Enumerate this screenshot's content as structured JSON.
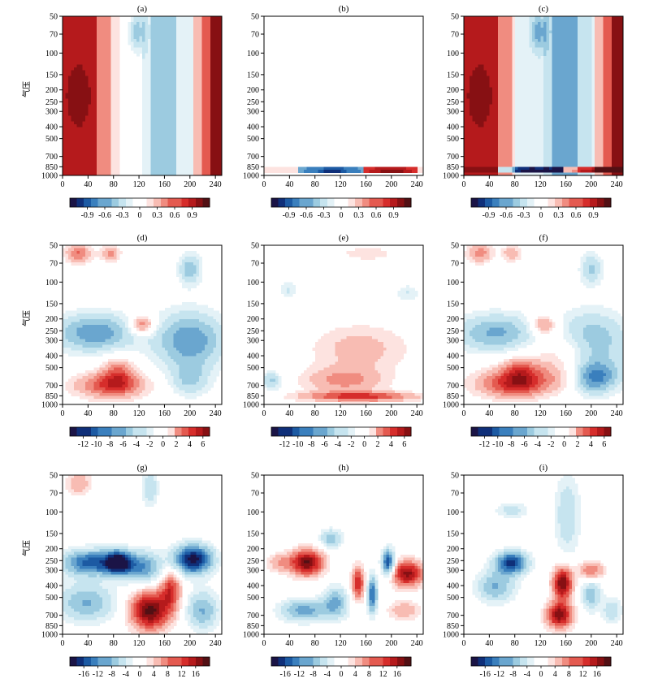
{
  "figure": {
    "y_axis_label": "气压",
    "colors": {
      "neg": [
        "#1b1446",
        "#0f2f79",
        "#1c5aa3",
        "#3a7fbd",
        "#6aa6cf",
        "#9ccbe0",
        "#c6e4ef",
        "#e4f2f7",
        "#ffffff"
      ],
      "pos": [
        "#ffffff",
        "#fde3e0",
        "#f8bcb3",
        "#f08c80",
        "#e45a50",
        "#d62d2b",
        "#b51a1c",
        "#871013",
        "#521014"
      ]
    }
  },
  "chart_data": [
    {
      "id": "a",
      "title": "(a)",
      "type": "heatmap",
      "row": 0,
      "col": 0,
      "x_ticks": [
        0,
        40,
        80,
        120,
        160,
        200,
        240
      ],
      "xlim": [
        0,
        250
      ],
      "y_ticks": [
        50,
        70,
        100,
        150,
        200,
        250,
        300,
        400,
        500,
        700,
        850,
        1000
      ],
      "ylim": [
        1000,
        50
      ],
      "y_scale": "log",
      "show_yticks": true,
      "colorbar_ticks": [
        "-0.9",
        "-0.6",
        "-0.3",
        "0",
        "0.3",
        "0.6",
        "0.9"
      ],
      "colorbar_range": [
        -1.2,
        1.2
      ],
      "pattern": "a"
    },
    {
      "id": "b",
      "title": "(b)",
      "type": "heatmap",
      "row": 0,
      "col": 1,
      "x_ticks": [
        0,
        40,
        80,
        120,
        160,
        200,
        240
      ],
      "xlim": [
        0,
        250
      ],
      "y_ticks": [
        50,
        70,
        100,
        150,
        200,
        250,
        300,
        400,
        500,
        700,
        850,
        1000
      ],
      "ylim": [
        1000,
        50
      ],
      "y_scale": "log",
      "show_yticks": true,
      "colorbar_ticks": [
        "-0.9",
        "-0.6",
        "-0.3",
        "0",
        "0.3",
        "0.6",
        "0.9"
      ],
      "colorbar_range": [
        -1.2,
        1.2
      ],
      "pattern": "b"
    },
    {
      "id": "c",
      "title": "(c)",
      "type": "heatmap",
      "row": 0,
      "col": 2,
      "x_ticks": [
        0,
        40,
        80,
        120,
        160,
        200,
        240
      ],
      "xlim": [
        0,
        250
      ],
      "y_ticks": [
        50,
        70,
        100,
        150,
        200,
        250,
        300,
        400,
        500,
        700,
        850,
        1000
      ],
      "ylim": [
        1000,
        50
      ],
      "y_scale": "log",
      "show_yticks": true,
      "colorbar_ticks": [
        "-0.9",
        "-0.6",
        "-0.3",
        "0",
        "0.3",
        "0.6",
        "0.9"
      ],
      "colorbar_range": [
        -1.2,
        1.2
      ],
      "pattern": "c"
    },
    {
      "id": "d",
      "title": "(d)",
      "type": "heatmap",
      "row": 1,
      "col": 0,
      "x_ticks": [
        0,
        40,
        80,
        120,
        160,
        200,
        240
      ],
      "xlim": [
        0,
        250
      ],
      "y_ticks": [
        50,
        70,
        100,
        150,
        200,
        250,
        300,
        400,
        500,
        700,
        850,
        1000
      ],
      "ylim": [
        1000,
        50
      ],
      "y_scale": "log",
      "show_yticks": true,
      "colorbar_ticks": [
        "-12",
        "-10",
        "-8",
        "-6",
        "-4",
        "-2",
        "0",
        "2",
        "4",
        "6"
      ],
      "colorbar_range": [
        -14,
        7
      ],
      "pattern": "d"
    },
    {
      "id": "e",
      "title": "(e)",
      "type": "heatmap",
      "row": 1,
      "col": 1,
      "x_ticks": [
        0,
        40,
        80,
        120,
        160,
        200,
        240
      ],
      "xlim": [
        0,
        250
      ],
      "y_ticks": [
        50,
        70,
        100,
        150,
        200,
        250,
        300,
        400,
        500,
        700,
        850,
        1000
      ],
      "ylim": [
        1000,
        50
      ],
      "y_scale": "log",
      "show_yticks": true,
      "colorbar_ticks": [
        "-12",
        "-10",
        "-8",
        "-6",
        "-4",
        "-2",
        "0",
        "2",
        "4",
        "6"
      ],
      "colorbar_range": [
        -14,
        7
      ],
      "pattern": "e"
    },
    {
      "id": "f",
      "title": "(f)",
      "type": "heatmap",
      "row": 1,
      "col": 2,
      "x_ticks": [
        0,
        40,
        80,
        120,
        160,
        200,
        240
      ],
      "xlim": [
        0,
        250
      ],
      "y_ticks": [
        50,
        70,
        100,
        150,
        200,
        250,
        300,
        400,
        500,
        700,
        850,
        1000
      ],
      "ylim": [
        1000,
        50
      ],
      "y_scale": "log",
      "show_yticks": true,
      "colorbar_ticks": [
        "-12",
        "-10",
        "-8",
        "-6",
        "-4",
        "-2",
        "0",
        "2",
        "4",
        "6"
      ],
      "colorbar_range": [
        -14,
        7
      ],
      "pattern": "f"
    },
    {
      "id": "g",
      "title": "(g)",
      "type": "heatmap",
      "row": 2,
      "col": 0,
      "x_ticks": [
        0,
        40,
        80,
        120,
        160,
        200,
        240
      ],
      "xlim": [
        0,
        250
      ],
      "y_ticks": [
        50,
        70,
        100,
        150,
        200,
        250,
        300,
        400,
        500,
        700,
        850,
        1000
      ],
      "ylim": [
        1000,
        50
      ],
      "y_scale": "log",
      "show_yticks": true,
      "colorbar_ticks": [
        "-16",
        "-12",
        "-8",
        "-4",
        "0",
        "4",
        "8",
        "12",
        "16"
      ],
      "colorbar_range": [
        -20,
        20
      ],
      "pattern": "g"
    },
    {
      "id": "h",
      "title": "(h)",
      "type": "heatmap",
      "row": 2,
      "col": 1,
      "x_ticks": [
        0,
        40,
        80,
        120,
        160,
        200,
        240
      ],
      "xlim": [
        0,
        250
      ],
      "y_ticks": [
        50,
        70,
        100,
        150,
        200,
        250,
        300,
        400,
        500,
        700,
        850,
        1000
      ],
      "ylim": [
        1000,
        50
      ],
      "y_scale": "log",
      "show_yticks": true,
      "colorbar_ticks": [
        "-16",
        "-12",
        "-8",
        "-4",
        "0",
        "4",
        "8",
        "12",
        "16"
      ],
      "colorbar_range": [
        -20,
        20
      ],
      "pattern": "h"
    },
    {
      "id": "i",
      "title": "(i)",
      "type": "heatmap",
      "row": 2,
      "col": 2,
      "x_ticks": [
        0,
        40,
        80,
        120,
        160,
        200,
        240
      ],
      "xlim": [
        0,
        250
      ],
      "y_ticks": [
        50,
        70,
        100,
        150,
        200,
        250,
        300,
        400,
        500,
        700,
        850,
        1000
      ],
      "ylim": [
        1000,
        50
      ],
      "y_scale": "log",
      "show_yticks": true,
      "colorbar_ticks": [
        "-16",
        "-12",
        "-8",
        "-4",
        "0",
        "4",
        "8",
        "12",
        "16"
      ],
      "colorbar_range": [
        -20,
        20
      ],
      "pattern": "i"
    }
  ]
}
